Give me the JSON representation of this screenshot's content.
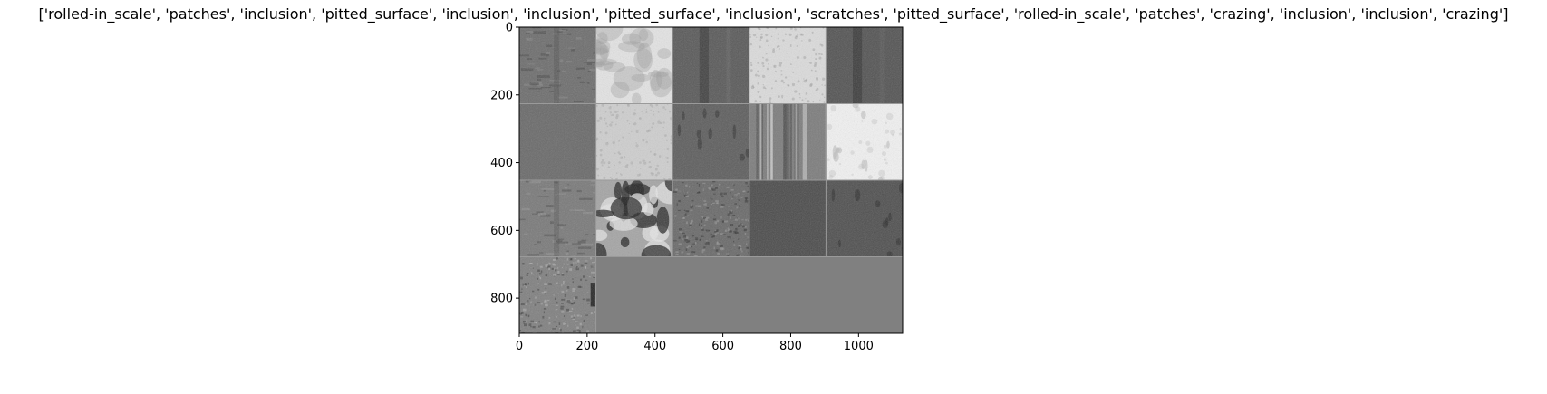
{
  "chart_data": {
    "type": "image_grid",
    "title": "['rolled-in_scale', 'patches', 'inclusion', 'pitted_surface', 'inclusion', 'inclusion', 'pitted_surface', 'inclusion', 'scratches', 'pitted_surface', 'rolled-in_scale', 'patches', 'crazing', 'inclusion', 'inclusion', 'crazing']",
    "labels": [
      "rolled-in_scale",
      "patches",
      "inclusion",
      "pitted_surface",
      "inclusion",
      "inclusion",
      "pitted_surface",
      "inclusion",
      "scratches",
      "pitted_surface",
      "rolled-in_scale",
      "patches",
      "crazing",
      "inclusion",
      "inclusion",
      "crazing"
    ],
    "grid": {
      "columns": 5,
      "rows": 4,
      "tile_px": 226
    },
    "xlim": [
      0,
      1130
    ],
    "ylim": [
      904,
      0
    ],
    "x_ticks": [
      0,
      200,
      400,
      600,
      800,
      1000
    ],
    "y_ticks": [
      0,
      200,
      400,
      600,
      800
    ],
    "tiles": [
      {
        "label": "rolled-in_scale",
        "base": "#6e6e6e",
        "light": "#8a8a8a",
        "dark": "#4a4a4a",
        "texture": "streak"
      },
      {
        "label": "patches",
        "base": "#e4e4e4",
        "light": "#f7f7f7",
        "dark": "#9a9a9a",
        "texture": "blotch-light"
      },
      {
        "label": "inclusion",
        "base": "#5a5a5a",
        "light": "#6e6e6e",
        "dark": "#2e2e2e",
        "texture": "vline"
      },
      {
        "label": "pitted_surface",
        "base": "#dcdcdc",
        "light": "#f2f2f2",
        "dark": "#9f9f9f",
        "texture": "speckle"
      },
      {
        "label": "inclusion",
        "base": "#545454",
        "light": "#656565",
        "dark": "#2a2a2a",
        "texture": "vline"
      },
      {
        "label": "inclusion",
        "base": "#6a6a6a",
        "light": "#777777",
        "dark": "#505050",
        "texture": "flat"
      },
      {
        "label": "pitted_surface",
        "base": "#cfcfcf",
        "light": "#e9e9e9",
        "dark": "#a7a7a7",
        "texture": "speckle"
      },
      {
        "label": "inclusion",
        "base": "#5e5e5e",
        "light": "#6f6f6f",
        "dark": "#333333",
        "texture": "spots"
      },
      {
        "label": "scratches",
        "base": "#7d7d7d",
        "light": "#cfcfcf",
        "dark": "#4d4d4d",
        "texture": "vstripes"
      },
      {
        "label": "pitted_surface",
        "base": "#f2f2f2",
        "light": "#ffffff",
        "dark": "#bdbdbd",
        "texture": "spots-light"
      },
      {
        "label": "rolled-in_scale",
        "base": "#7a7a7a",
        "light": "#939393",
        "dark": "#4f4f4f",
        "texture": "streak"
      },
      {
        "label": "patches",
        "base": "#a5a5a5",
        "light": "#e6e6e6",
        "dark": "#222222",
        "texture": "blotch-dark"
      },
      {
        "label": "crazing",
        "base": "#6a6a6a",
        "light": "#9a9a9a",
        "dark": "#303030",
        "texture": "noise"
      },
      {
        "label": "inclusion",
        "base": "#4c4c4c",
        "light": "#575757",
        "dark": "#3a3a3a",
        "texture": "flat"
      },
      {
        "label": "inclusion",
        "base": "#505050",
        "light": "#5e5e5e",
        "dark": "#2d2d2d",
        "texture": "spots"
      },
      {
        "label": "crazing",
        "base": "#808080",
        "light": "#b5b5b5",
        "dark": "#3b3b3b",
        "texture": "noise"
      }
    ],
    "empty_fill": "#808080"
  }
}
